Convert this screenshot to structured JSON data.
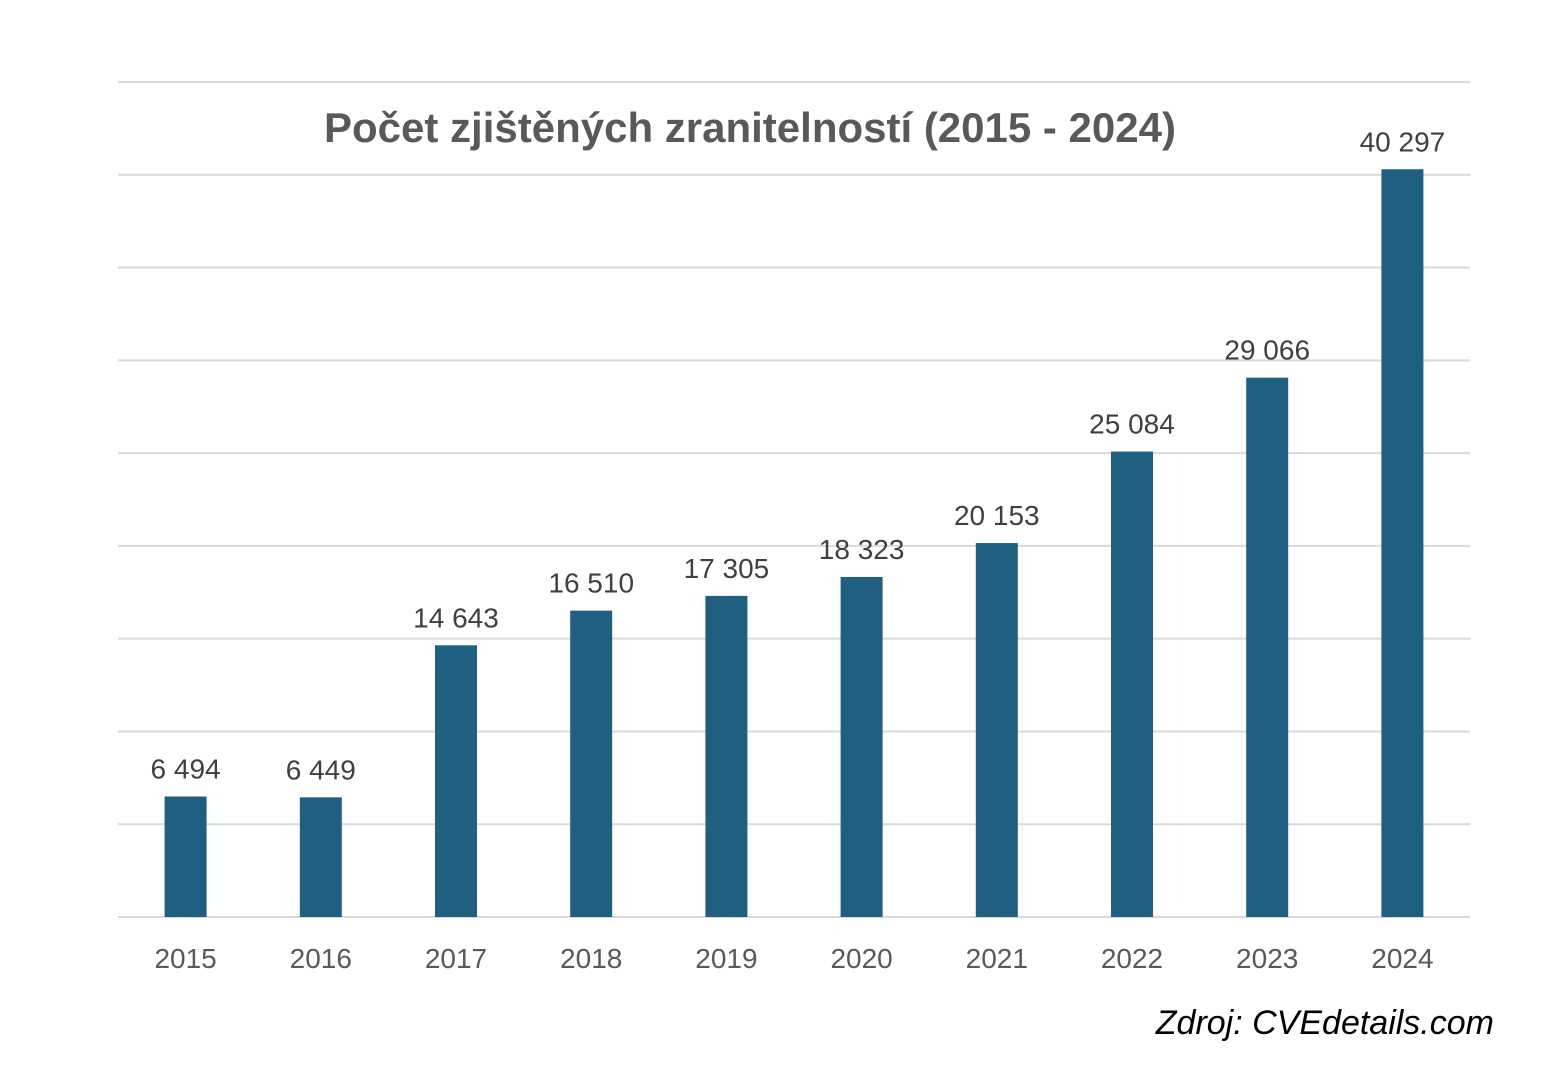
{
  "chart_data": {
    "type": "bar",
    "title": "Počet zjištěných zranitelností (2015 - 2024)",
    "categories": [
      "2015",
      "2016",
      "2017",
      "2018",
      "2019",
      "2020",
      "2021",
      "2022",
      "2023",
      "2024"
    ],
    "values": [
      6494,
      6449,
      14643,
      16510,
      17305,
      18323,
      20153,
      25084,
      29066,
      40297
    ],
    "value_labels": [
      "6 494",
      "6 449",
      "14 643",
      "16 510",
      "17 305",
      "18 323",
      "20 153",
      "25 084",
      "29 066",
      "40 297"
    ],
    "xlabel": "",
    "ylabel": "",
    "ylim": [
      0,
      45000
    ],
    "grid": true,
    "legend": "none",
    "bar_color": "#1f5f80",
    "grid_color": "#d9d9d9"
  },
  "source": "Zdroj: CVEdetails.com"
}
